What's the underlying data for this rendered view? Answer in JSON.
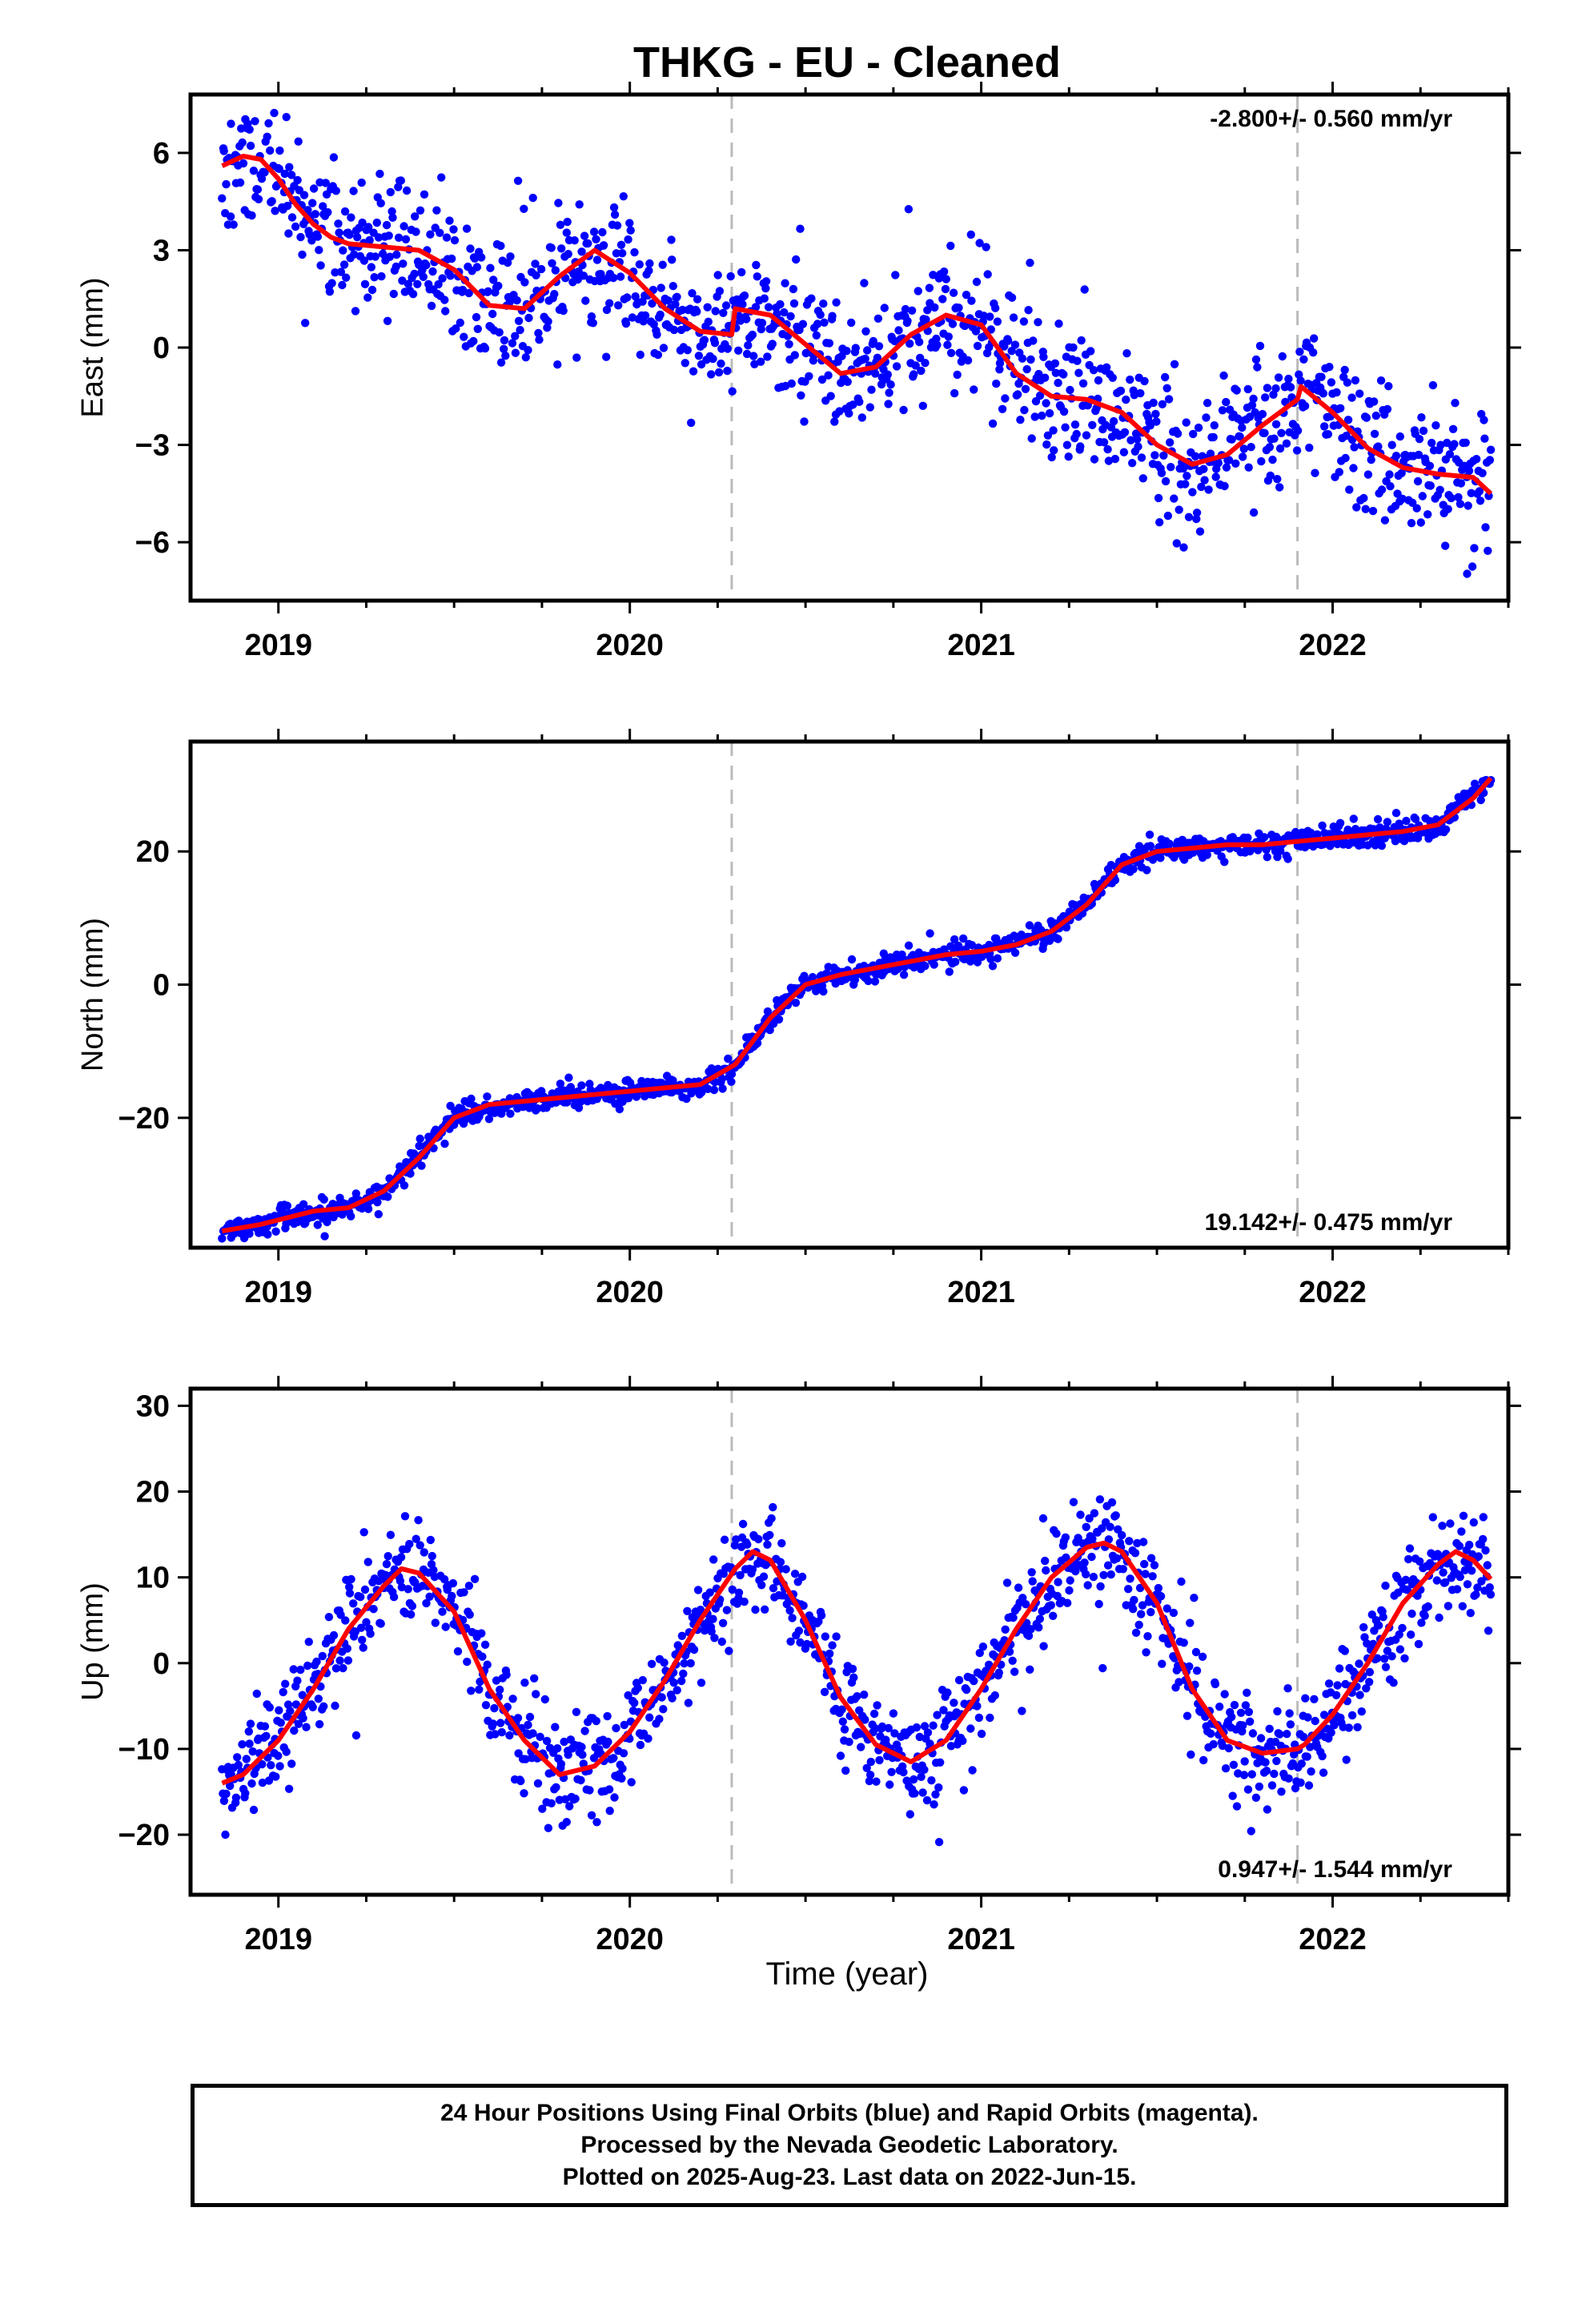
{
  "title": "THKG  - EU - Cleaned",
  "xlabel": "Time (year)",
  "footer": [
    "24 Hour Positions Using Final Orbits (blue) and Rapid Orbits (magenta).",
    "Processed by the Nevada Geodetic Laboratory.",
    "Plotted on 2025-Aug-23. Last data on 2022-Jun-15."
  ],
  "colors": {
    "data": "#0000ff",
    "model": "#ff0000",
    "break_line": "#bbbbbb",
    "frame": "#000000"
  },
  "chart_data": [
    {
      "type": "scatter",
      "ylabel": "East (mm)",
      "rate": "-2.800+/- 0.560 mm/yr",
      "rate_position": "top-right",
      "xlim": [
        2018.75,
        2022.5
      ],
      "ylim": [
        -7.8,
        7.8
      ],
      "xticks": [
        "2019",
        "2020",
        "2021",
        "2022"
      ],
      "yticks": [
        "6",
        "3",
        "0",
        "−3",
        "−6"
      ],
      "ytick_values": [
        6,
        3,
        0,
        -3,
        -6
      ],
      "breaks": [
        2020.29,
        2021.9
      ],
      "model": {
        "x": [
          2018.84,
          2018.9,
          2018.95,
          2019.0,
          2019.05,
          2019.1,
          2019.15,
          2019.2,
          2019.3,
          2019.4,
          2019.5,
          2019.6,
          2019.7,
          2019.8,
          2019.9,
          2020.0,
          2020.1,
          2020.2,
          2020.29,
          2020.3,
          2020.4,
          2020.5,
          2020.6,
          2020.7,
          2020.8,
          2020.9,
          2021.0,
          2021.1,
          2021.2,
          2021.3,
          2021.4,
          2021.5,
          2021.6,
          2021.7,
          2021.8,
          2021.9,
          2021.91,
          2022.0,
          2022.1,
          2022.2,
          2022.3,
          2022.4,
          2022.45
        ],
        "y": [
          5.6,
          5.9,
          5.8,
          5.2,
          4.4,
          3.8,
          3.4,
          3.2,
          3.1,
          3.0,
          2.4,
          1.3,
          1.2,
          2.2,
          3.0,
          2.3,
          1.2,
          0.5,
          0.4,
          1.2,
          1.0,
          0.1,
          -0.8,
          -0.6,
          0.4,
          1.0,
          0.7,
          -0.8,
          -1.5,
          -1.6,
          -2.0,
          -3.0,
          -3.6,
          -3.3,
          -2.4,
          -1.6,
          -1.2,
          -2.0,
          -3.1,
          -3.7,
          -3.9,
          -4.0,
          -4.5
        ]
      },
      "scatter": {
        "seed": 11,
        "noise": 1.05
      }
    },
    {
      "type": "scatter",
      "ylabel": "North (mm)",
      "rate": "19.142+/- 0.475 mm/yr",
      "rate_position": "bottom-right",
      "xlim": [
        2018.75,
        2022.5
      ],
      "ylim": [
        -39.5,
        36.5
      ],
      "xticks": [
        "2019",
        "2020",
        "2021",
        "2022"
      ],
      "yticks": [
        "20",
        "0",
        "−20"
      ],
      "ytick_values": [
        20,
        0,
        -20
      ],
      "breaks": [
        2020.29,
        2021.9
      ],
      "model": {
        "x": [
          2018.84,
          2018.95,
          2019.1,
          2019.2,
          2019.3,
          2019.4,
          2019.5,
          2019.6,
          2019.7,
          2019.8,
          2019.9,
          2020.0,
          2020.1,
          2020.2,
          2020.3,
          2020.4,
          2020.5,
          2020.6,
          2020.7,
          2020.8,
          2020.9,
          2021.0,
          2021.1,
          2021.2,
          2021.3,
          2021.4,
          2021.5,
          2021.6,
          2021.7,
          2021.8,
          2021.9,
          2022.0,
          2022.1,
          2022.2,
          2022.3,
          2022.4,
          2022.45
        ],
        "y": [
          -37,
          -36,
          -34,
          -33.5,
          -31,
          -26,
          -20,
          -18,
          -17.5,
          -17,
          -16.5,
          -16,
          -15.5,
          -15,
          -12,
          -5,
          0,
          1.5,
          2.5,
          3.5,
          4.5,
          5,
          6,
          8,
          12,
          18,
          20,
          20.5,
          21,
          21,
          21.5,
          22,
          22.5,
          23,
          24,
          28,
          31
        ]
      },
      "scatter": {
        "seed": 23,
        "noise": 0.85
      }
    },
    {
      "type": "scatter",
      "ylabel": "Up (mm)",
      "rate": "0.947+/- 1.544 mm/yr",
      "rate_position": "bottom-right",
      "xlim": [
        2018.75,
        2022.5
      ],
      "ylim": [
        -27,
        32
      ],
      "xticks": [
        "2019",
        "2020",
        "2021",
        "2022"
      ],
      "yticks": [
        "30",
        "20",
        "10",
        "0",
        "−10",
        "−20"
      ],
      "ytick_values": [
        30,
        20,
        10,
        0,
        -10,
        -20
      ],
      "breaks": [
        2020.29,
        2021.9
      ],
      "model": {
        "x": [
          2018.84,
          2018.9,
          2019.0,
          2019.1,
          2019.2,
          2019.3,
          2019.35,
          2019.4,
          2019.5,
          2019.6,
          2019.7,
          2019.8,
          2019.9,
          2020.0,
          2020.1,
          2020.2,
          2020.3,
          2020.35,
          2020.4,
          2020.5,
          2020.6,
          2020.7,
          2020.8,
          2020.9,
          2021.0,
          2021.1,
          2021.2,
          2021.3,
          2021.35,
          2021.4,
          2021.5,
          2021.6,
          2021.7,
          2021.8,
          2021.9,
          2021.92,
          2022.0,
          2022.1,
          2022.2,
          2022.3,
          2022.35,
          2022.4,
          2022.45
        ],
        "y": [
          -14,
          -13,
          -9,
          -3,
          4,
          9,
          11,
          10.5,
          6,
          -3,
          -9,
          -13,
          -12,
          -8,
          -2,
          5,
          11,
          13,
          12,
          5,
          -4,
          -9.5,
          -11.5,
          -9,
          -3,
          4,
          10,
          13.5,
          14,
          13,
          7,
          -3,
          -9,
          -10.5,
          -10,
          -9.5,
          -6,
          0,
          7,
          11.5,
          13,
          12,
          9.8
        ]
      },
      "scatter": {
        "seed": 37,
        "noise": 3.0
      }
    }
  ]
}
